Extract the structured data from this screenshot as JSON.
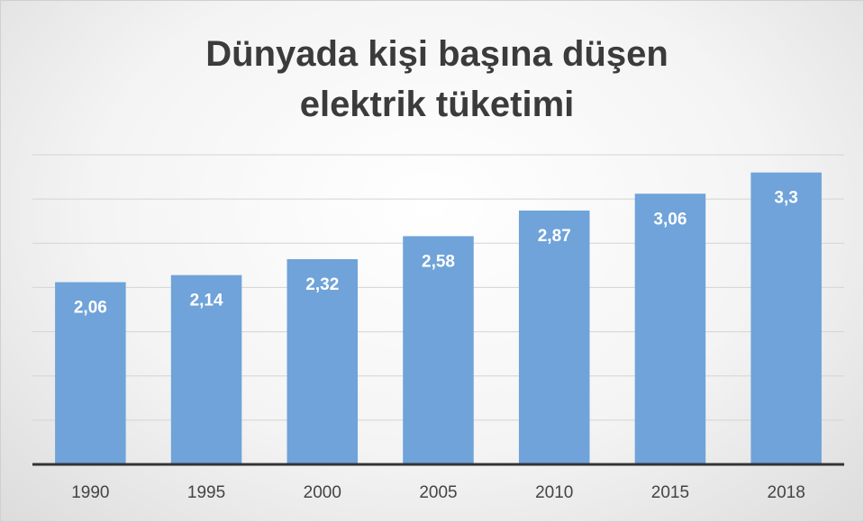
{
  "chart_data": {
    "type": "bar",
    "title": "Dünyada kişi başına düşen elektrik tüketimi",
    "categories": [
      "1990",
      "1995",
      "2000",
      "2005",
      "2010",
      "2015",
      "2018"
    ],
    "values": [
      2.06,
      2.14,
      2.32,
      2.58,
      2.87,
      3.06,
      3.3
    ],
    "value_labels": [
      "2,06",
      "2,14",
      "2,32",
      "2,58",
      "2,87",
      "3,06",
      "3,3"
    ],
    "color": "#6fa3d9",
    "ylim": [
      0,
      3.5
    ],
    "yticks": [
      0,
      0.5,
      1,
      1.5,
      2,
      2.5,
      3,
      3.5
    ],
    "grid": true
  }
}
